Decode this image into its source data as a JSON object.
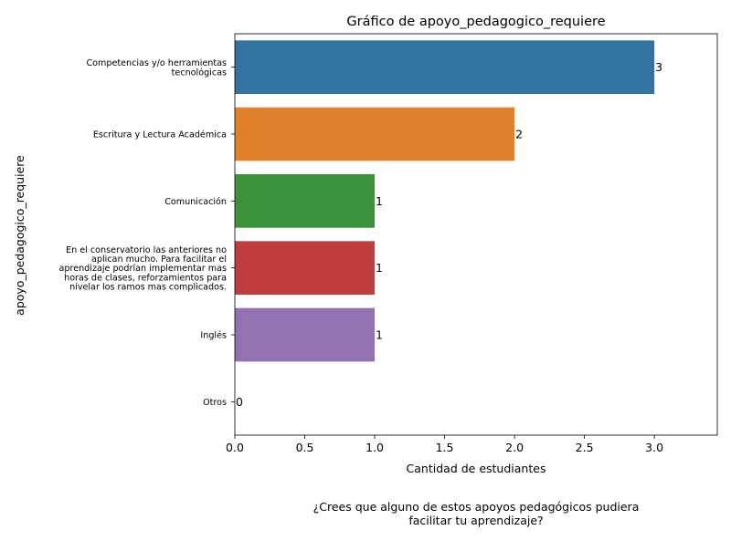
{
  "caption": {
    "line1": "¿Crees que alguno de estos apoyos pedagógicos pudiera",
    "line2": "facilitar tu aprendizaje?"
  },
  "chart_data": {
    "type": "bar",
    "orientation": "horizontal",
    "title": "Gráfico de apoyo_pedagogico_requiere",
    "xlabel": "Cantidad de estudiantes",
    "ylabel": "apoyo_pedagogico_requiere",
    "xlim": [
      0,
      3.45
    ],
    "xticks": [
      "0.0",
      "0.5",
      "1.0",
      "1.5",
      "2.0",
      "2.5",
      "3.0"
    ],
    "grid": false,
    "legend": "none",
    "categories": [
      "Competencias y/o herramientas tecnológicas",
      "Escritura y Lectura Académica",
      "Comunicación",
      "En el conservatorio las anteriores no aplican mucho. Para facilitar el aprendizaje podrían implementar mas horas de clases, reforzamientos para nivelar los ramos mas complicados.",
      "Inglés",
      "Otros"
    ],
    "category_label_lines": [
      [
        "Competencias y/o herramientas",
        "tecnológicas"
      ],
      [
        "Escritura y Lectura Académica"
      ],
      [
        "Comunicación"
      ],
      [
        "En el conservatorio las anteriores no",
        "aplican mucho. Para facilitar el",
        "aprendizaje podrían implementar mas",
        "horas de clases, reforzamientos para",
        "nivelar los ramos mas complicados."
      ],
      [
        "Inglés"
      ],
      [
        "Otros"
      ]
    ],
    "values": [
      3,
      2,
      1,
      1,
      1,
      0
    ],
    "data_labels": [
      "3",
      "2",
      "1",
      "1",
      "1",
      "0"
    ],
    "colors": [
      "#3274a1",
      "#e1812c",
      "#3a923a",
      "#c03d3e",
      "#9372b2",
      "#845b53"
    ]
  }
}
